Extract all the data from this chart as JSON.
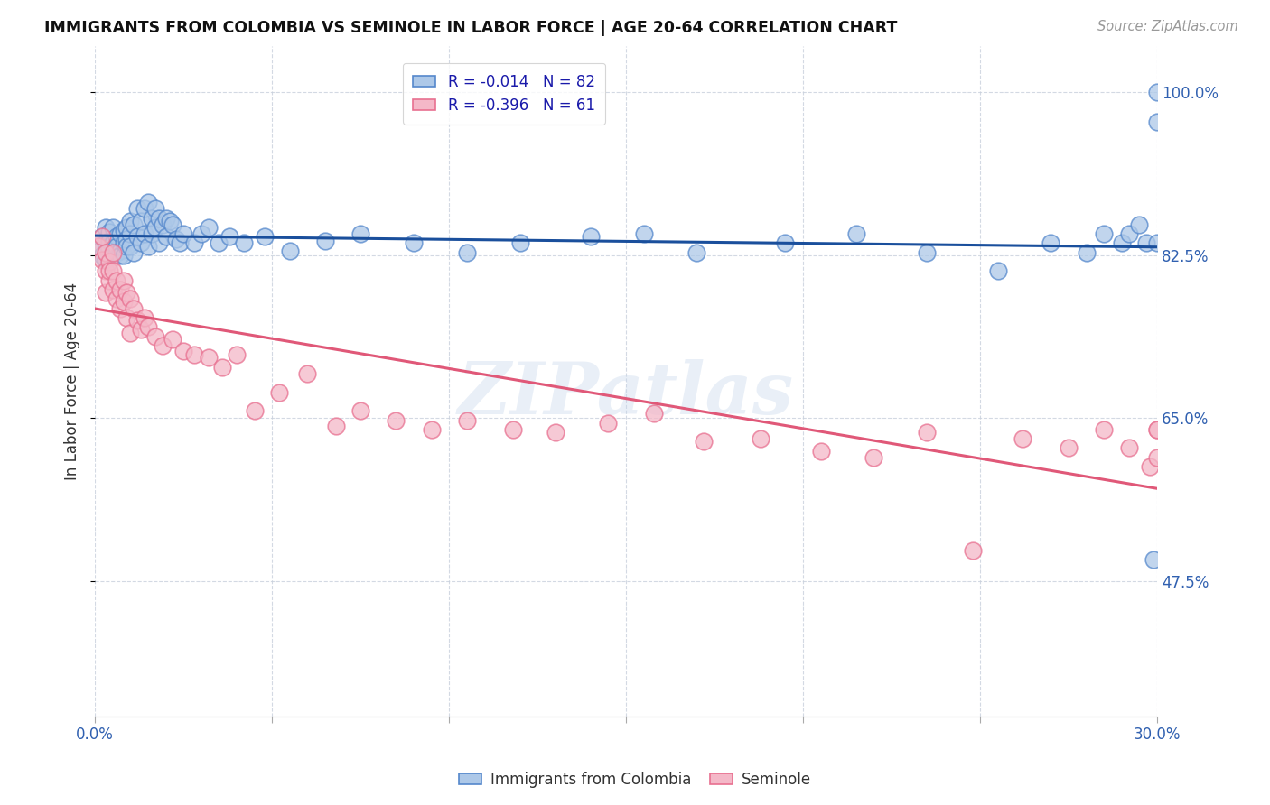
{
  "title": "IMMIGRANTS FROM COLOMBIA VS SEMINOLE IN LABOR FORCE | AGE 20-64 CORRELATION CHART",
  "source": "Source: ZipAtlas.com",
  "ylabel": "In Labor Force | Age 20-64",
  "xlim": [
    0.0,
    0.3
  ],
  "ylim": [
    0.33,
    1.05
  ],
  "blue_R": -0.014,
  "blue_N": 82,
  "pink_R": -0.396,
  "pink_N": 61,
  "blue_color": "#adc8e8",
  "pink_color": "#f4b8c8",
  "blue_edge_color": "#5588cc",
  "pink_edge_color": "#e87090",
  "blue_line_color": "#1a4f9c",
  "pink_line_color": "#e05878",
  "watermark": "ZIPatlas",
  "ytick_positions": [
    0.475,
    0.65,
    0.825,
    1.0
  ],
  "ytick_labels": [
    "47.5%",
    "65.0%",
    "82.5%",
    "100.0%"
  ],
  "xtick_positions": [
    0.0,
    0.05,
    0.1,
    0.15,
    0.2,
    0.25,
    0.3
  ],
  "xtick_labels": [
    "0.0%",
    "",
    "",
    "",
    "",
    "",
    "30.0%"
  ],
  "blue_scatter_x": [
    0.001,
    0.002,
    0.002,
    0.003,
    0.003,
    0.003,
    0.004,
    0.004,
    0.004,
    0.005,
    0.005,
    0.005,
    0.006,
    0.006,
    0.006,
    0.007,
    0.007,
    0.007,
    0.008,
    0.008,
    0.008,
    0.009,
    0.009,
    0.009,
    0.01,
    0.01,
    0.01,
    0.011,
    0.011,
    0.012,
    0.012,
    0.013,
    0.013,
    0.014,
    0.014,
    0.015,
    0.015,
    0.016,
    0.016,
    0.017,
    0.017,
    0.018,
    0.018,
    0.019,
    0.02,
    0.02,
    0.021,
    0.022,
    0.023,
    0.024,
    0.025,
    0.028,
    0.03,
    0.032,
    0.035,
    0.038,
    0.042,
    0.048,
    0.055,
    0.065,
    0.075,
    0.09,
    0.105,
    0.12,
    0.14,
    0.155,
    0.17,
    0.195,
    0.215,
    0.235,
    0.255,
    0.27,
    0.28,
    0.285,
    0.29,
    0.292,
    0.295,
    0.297,
    0.299,
    0.3,
    0.3,
    0.3
  ],
  "blue_scatter_y": [
    0.83,
    0.845,
    0.825,
    0.838,
    0.855,
    0.82,
    0.832,
    0.85,
    0.84,
    0.828,
    0.855,
    0.838,
    0.828,
    0.845,
    0.835,
    0.848,
    0.83,
    0.825,
    0.852,
    0.838,
    0.825,
    0.855,
    0.842,
    0.835,
    0.862,
    0.848,
    0.835,
    0.858,
    0.828,
    0.875,
    0.845,
    0.862,
    0.838,
    0.875,
    0.848,
    0.882,
    0.835,
    0.865,
    0.848,
    0.875,
    0.855,
    0.865,
    0.838,
    0.858,
    0.865,
    0.845,
    0.862,
    0.858,
    0.842,
    0.838,
    0.848,
    0.838,
    0.848,
    0.855,
    0.838,
    0.845,
    0.838,
    0.845,
    0.83,
    0.84,
    0.848,
    0.838,
    0.828,
    0.838,
    0.845,
    0.848,
    0.828,
    0.838,
    0.848,
    0.828,
    0.808,
    0.838,
    0.828,
    0.848,
    0.838,
    0.848,
    0.858,
    0.838,
    0.498,
    0.838,
    0.968,
    1.0
  ],
  "pink_scatter_x": [
    0.001,
    0.002,
    0.002,
    0.003,
    0.003,
    0.003,
    0.004,
    0.004,
    0.004,
    0.005,
    0.005,
    0.005,
    0.006,
    0.006,
    0.007,
    0.007,
    0.008,
    0.008,
    0.009,
    0.009,
    0.01,
    0.01,
    0.011,
    0.012,
    0.013,
    0.014,
    0.015,
    0.017,
    0.019,
    0.022,
    0.025,
    0.028,
    0.032,
    0.036,
    0.04,
    0.045,
    0.052,
    0.06,
    0.068,
    0.075,
    0.085,
    0.095,
    0.105,
    0.118,
    0.13,
    0.145,
    0.158,
    0.172,
    0.188,
    0.205,
    0.22,
    0.235,
    0.248,
    0.262,
    0.275,
    0.285,
    0.292,
    0.298,
    0.3,
    0.3,
    0.3
  ],
  "pink_scatter_y": [
    0.835,
    0.845,
    0.82,
    0.808,
    0.828,
    0.785,
    0.798,
    0.818,
    0.808,
    0.828,
    0.788,
    0.808,
    0.798,
    0.778,
    0.788,
    0.768,
    0.798,
    0.775,
    0.785,
    0.758,
    0.778,
    0.742,
    0.768,
    0.755,
    0.745,
    0.758,
    0.748,
    0.738,
    0.728,
    0.735,
    0.722,
    0.718,
    0.715,
    0.705,
    0.718,
    0.658,
    0.678,
    0.698,
    0.642,
    0.658,
    0.648,
    0.638,
    0.648,
    0.638,
    0.635,
    0.645,
    0.655,
    0.625,
    0.628,
    0.615,
    0.608,
    0.635,
    0.508,
    0.628,
    0.618,
    0.638,
    0.618,
    0.598,
    0.638,
    0.608,
    0.638
  ]
}
